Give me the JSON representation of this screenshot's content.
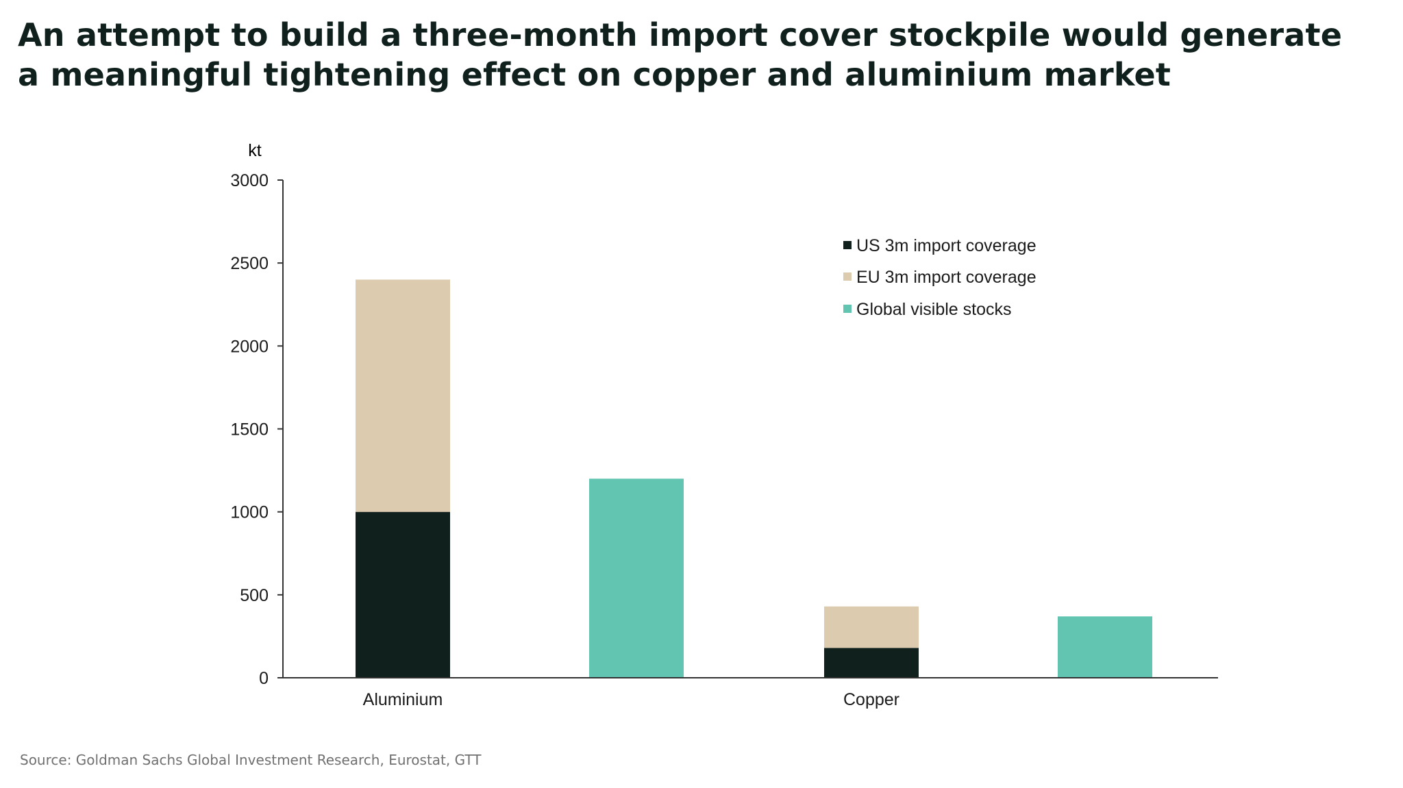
{
  "title": {
    "line1": "An attempt to build a three-month import cover stockpile would generate",
    "line2": "a meaningful tightening effect on copper and aluminium market"
  },
  "source": "Source: Goldman Sachs Global Investment Research, Eurostat, GTT",
  "colors": {
    "us": "#0f201d",
    "eu": "#dccbae",
    "global": "#62c5b2",
    "axis": "#333333",
    "text": "#1a1a1a"
  },
  "chart_data": {
    "type": "bar",
    "ylabel": "kt",
    "ylim": [
      0,
      3000
    ],
    "yticks": [
      "0",
      "500",
      "1000",
      "1500",
      "2000",
      "2500",
      "3000"
    ],
    "categories": [
      "Aluminium",
      "Copper"
    ],
    "series": [
      {
        "name": "US 3m import coverage",
        "values": [
          1000,
          180
        ]
      },
      {
        "name": "EU 3m import coverage",
        "values": [
          1400,
          250
        ]
      },
      {
        "name": "Global visible stocks",
        "values": [
          1200,
          370
        ]
      }
    ],
    "legend_position": "top-right",
    "grid": false
  }
}
